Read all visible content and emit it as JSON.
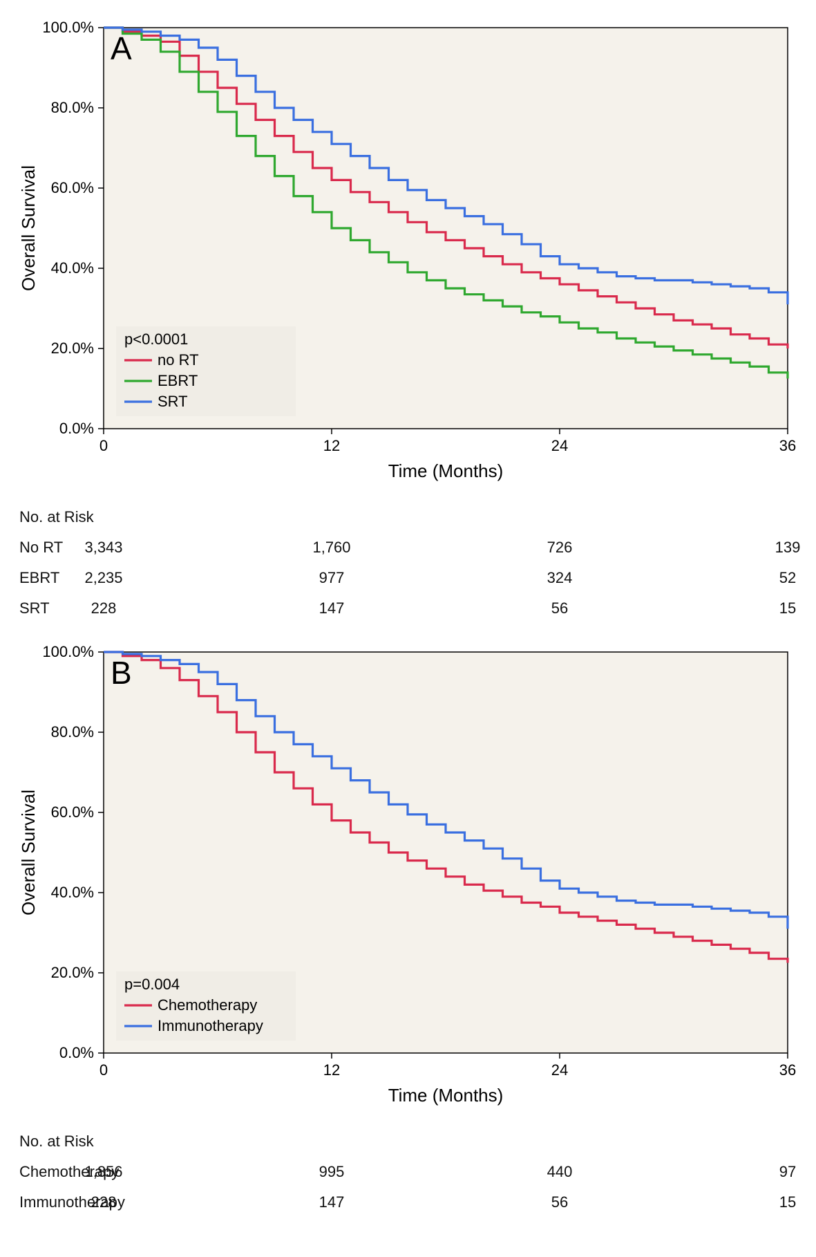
{
  "panels": [
    {
      "id": "A",
      "label": "A",
      "pvalue": "p<0.0001",
      "ylabel": "Overall Survival",
      "xlabel": "Time (Months)",
      "ylim": [
        0,
        100
      ],
      "xlim": [
        0,
        36
      ],
      "ytick_step": 20,
      "xtick_step": 12,
      "ytick_format_pct": true,
      "axis_fontsize": 26,
      "tick_fontsize": 22,
      "line_width": 3.2,
      "plot_bg": "#f5f2eb",
      "axis_color": "#000000",
      "legend_bg": "#f0ede6",
      "legend_fontsize": 22,
      "series": [
        {
          "name": "no RT",
          "color": "#d92a4c",
          "x": [
            0,
            1,
            2,
            3,
            4,
            5,
            6,
            7,
            8,
            9,
            10,
            11,
            12,
            13,
            14,
            15,
            16,
            17,
            18,
            19,
            20,
            21,
            22,
            23,
            24,
            25,
            26,
            27,
            28,
            29,
            30,
            31,
            32,
            33,
            34,
            35,
            36
          ],
          "y": [
            100,
            99,
            98,
            96.5,
            93,
            89,
            85,
            81,
            77,
            73,
            69,
            65,
            62,
            59,
            56.5,
            54,
            51.5,
            49,
            47,
            45,
            43,
            41,
            39,
            37.5,
            36,
            34.5,
            33,
            31.5,
            30,
            28.5,
            27,
            26,
            25,
            23.5,
            22.5,
            21,
            20
          ]
        },
        {
          "name": "EBRT",
          "color": "#2fa82f",
          "x": [
            0,
            1,
            2,
            3,
            4,
            5,
            6,
            7,
            8,
            9,
            10,
            11,
            12,
            13,
            14,
            15,
            16,
            17,
            18,
            19,
            20,
            21,
            22,
            23,
            24,
            25,
            26,
            27,
            28,
            29,
            30,
            31,
            32,
            33,
            34,
            35,
            36
          ],
          "y": [
            100,
            98.5,
            97,
            94,
            89,
            84,
            79,
            73,
            68,
            63,
            58,
            54,
            50,
            47,
            44,
            41.5,
            39,
            37,
            35,
            33.5,
            32,
            30.5,
            29,
            28,
            26.5,
            25,
            24,
            22.5,
            21.5,
            20.5,
            19.5,
            18.5,
            17.5,
            16.5,
            15.5,
            14,
            12.5
          ]
        },
        {
          "name": "SRT",
          "color": "#3a6fe0",
          "x": [
            0,
            1,
            2,
            3,
            4,
            5,
            6,
            7,
            8,
            9,
            10,
            11,
            12,
            13,
            14,
            15,
            16,
            17,
            18,
            19,
            20,
            21,
            22,
            23,
            24,
            25,
            26,
            27,
            28,
            29,
            30,
            31,
            32,
            33,
            34,
            35,
            36
          ],
          "y": [
            100,
            99.5,
            99,
            98,
            97,
            95,
            92,
            88,
            84,
            80,
            77,
            74,
            71,
            68,
            65,
            62,
            59.5,
            57,
            55,
            53,
            51,
            48.5,
            46,
            43,
            41,
            40,
            39,
            38,
            37.5,
            37,
            37,
            36.5,
            36,
            35.5,
            35,
            34,
            31
          ]
        }
      ],
      "risk_header": "No. at Risk",
      "risk_rows": [
        {
          "label": "No  RT",
          "values": [
            "3,343",
            "1,760",
            "726",
            "139"
          ]
        },
        {
          "label": "EBRT",
          "values": [
            "2,235",
            "977",
            "324",
            "52"
          ]
        },
        {
          "label": "SRT",
          "values": [
            "228",
            "147",
            "56",
            "15"
          ]
        }
      ]
    },
    {
      "id": "B",
      "label": "B",
      "pvalue": "p=0.004",
      "ylabel": "Overall Survival",
      "xlabel": "Time (Months)",
      "ylim": [
        0,
        100
      ],
      "xlim": [
        0,
        36
      ],
      "ytick_step": 20,
      "xtick_step": 12,
      "ytick_format_pct": true,
      "axis_fontsize": 26,
      "tick_fontsize": 22,
      "line_width": 3.2,
      "plot_bg": "#f5f2eb",
      "axis_color": "#000000",
      "legend_bg": "#f0ede6",
      "legend_fontsize": 22,
      "series": [
        {
          "name": "Chemotherapy",
          "color": "#d92a4c",
          "x": [
            0,
            1,
            2,
            3,
            4,
            5,
            6,
            7,
            8,
            9,
            10,
            11,
            12,
            13,
            14,
            15,
            16,
            17,
            18,
            19,
            20,
            21,
            22,
            23,
            24,
            25,
            26,
            27,
            28,
            29,
            30,
            31,
            32,
            33,
            34,
            35,
            36
          ],
          "y": [
            100,
            99,
            98,
            96,
            93,
            89,
            85,
            80,
            75,
            70,
            66,
            62,
            58,
            55,
            52.5,
            50,
            48,
            46,
            44,
            42,
            40.5,
            39,
            37.5,
            36.5,
            35,
            34,
            33,
            32,
            31,
            30,
            29,
            28,
            27,
            26,
            25,
            23.5,
            22.5
          ]
        },
        {
          "name": "Immunotherapy",
          "color": "#3a6fe0",
          "x": [
            0,
            1,
            2,
            3,
            4,
            5,
            6,
            7,
            8,
            9,
            10,
            11,
            12,
            13,
            14,
            15,
            16,
            17,
            18,
            19,
            20,
            21,
            22,
            23,
            24,
            25,
            26,
            27,
            28,
            29,
            30,
            31,
            32,
            33,
            34,
            35,
            36
          ],
          "y": [
            100,
            99.5,
            99,
            98,
            97,
            95,
            92,
            88,
            84,
            80,
            77,
            74,
            71,
            68,
            65,
            62,
            59.5,
            57,
            55,
            53,
            51,
            48.5,
            46,
            43,
            41,
            40,
            39,
            38,
            37.5,
            37,
            37,
            36.5,
            36,
            35.5,
            35,
            34,
            31
          ]
        }
      ],
      "risk_header": "No. at Risk",
      "risk_rows": [
        {
          "label": "Chemotherapy",
          "values": [
            "1,856",
            "995",
            "440",
            "97"
          ]
        },
        {
          "label": "Immunotherapy",
          "values": [
            "228",
            "147",
            "56",
            "15"
          ]
        }
      ]
    }
  ]
}
